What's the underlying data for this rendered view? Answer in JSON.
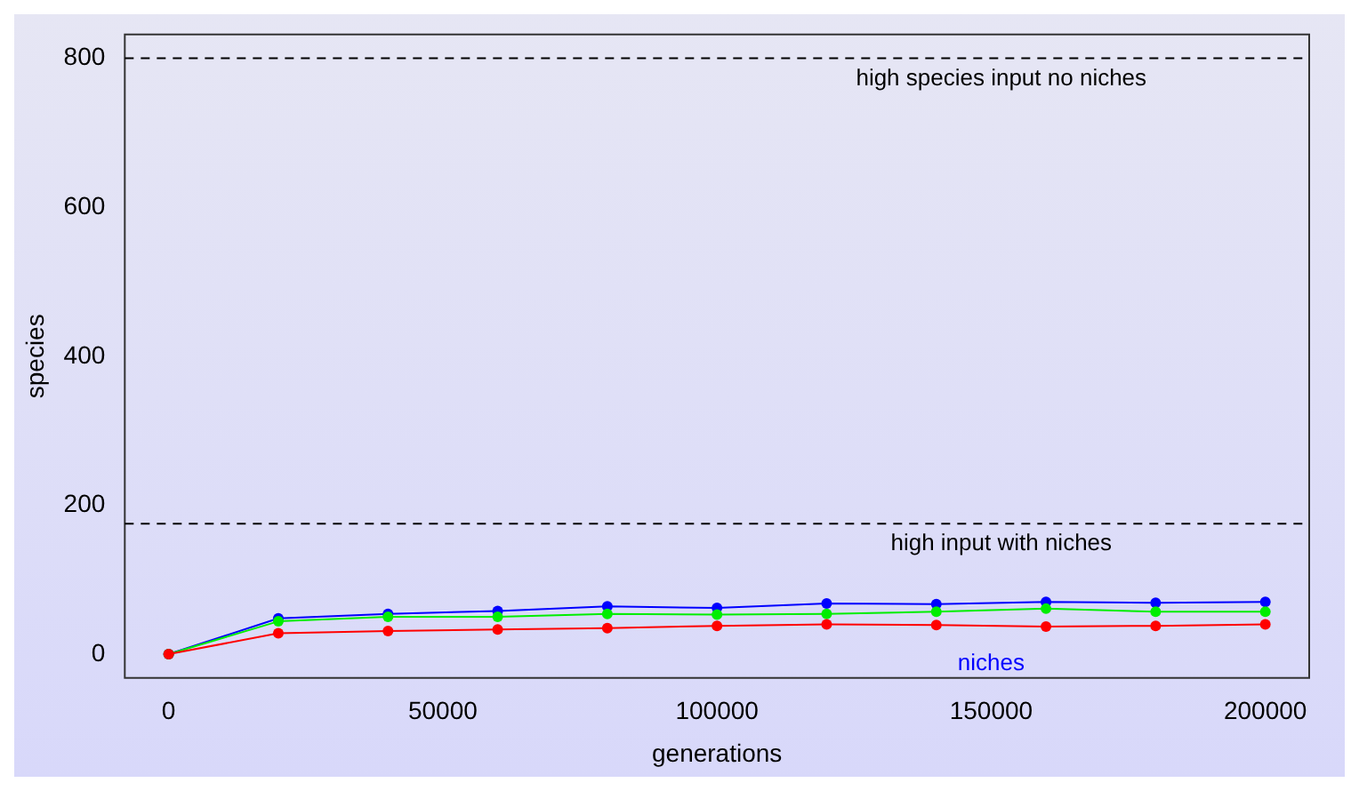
{
  "chart_data": {
    "type": "line",
    "xlabel": "generations",
    "ylabel": "species",
    "x": [
      0,
      20000,
      40000,
      60000,
      80000,
      100000,
      120000,
      140000,
      160000,
      180000,
      200000
    ],
    "series": [
      {
        "name": "niches",
        "color": "#0000ff",
        "values": [
          0,
          48,
          54,
          58,
          64,
          62,
          68,
          67,
          70,
          69,
          70
        ]
      },
      {
        "color": "#00ee00",
        "values": [
          0,
          44,
          50,
          50,
          54,
          53,
          54,
          57,
          61,
          57,
          57
        ]
      },
      {
        "color": "#ff0000",
        "values": [
          0,
          28,
          31,
          33,
          35,
          38,
          40,
          39,
          37,
          38,
          40
        ]
      }
    ],
    "xlim": [
      -8000,
      208000
    ],
    "xticks": [
      0,
      50000,
      100000,
      150000,
      200000
    ],
    "ylim": [
      -32,
      832
    ],
    "yticks": [
      0,
      200,
      400,
      600,
      800
    ],
    "ref_lines": [
      {
        "axis": "y",
        "value": 800,
        "label": "high species input no niches",
        "color": "#000000",
        "line_style": "dashed"
      },
      {
        "axis": "y",
        "value": 175,
        "label": "high input with niches",
        "color": "#000000",
        "line_style": "dashed"
      }
    ],
    "grid": false,
    "legend": false,
    "marker": "circle",
    "line_style": "solid"
  }
}
